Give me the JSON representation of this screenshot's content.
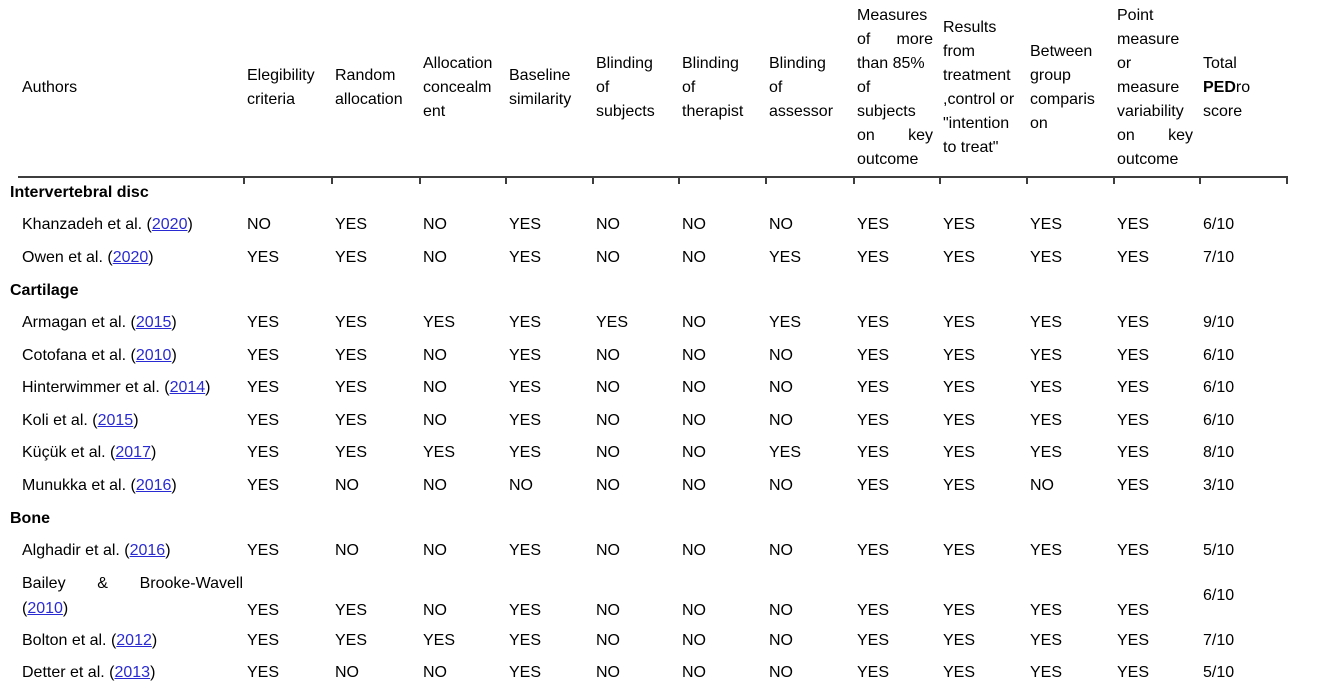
{
  "page": {
    "background": "#ffffff",
    "link_color": "#2a2ad2",
    "rule_color": "#3d3d3d"
  },
  "table": {
    "columns": [
      {
        "id": "authors",
        "lines": [
          {
            "segs": [
              {
                "t": "Authors"
              }
            ]
          }
        ]
      },
      {
        "id": "eligibility-criteria",
        "lines": [
          {
            "segs": [
              {
                "t": "Elegibility"
              }
            ]
          },
          {
            "segs": [
              {
                "t": "criteria"
              }
            ]
          }
        ]
      },
      {
        "id": "random-allocation",
        "lines": [
          {
            "segs": [
              {
                "t": "Random"
              }
            ]
          },
          {
            "segs": [
              {
                "t": "allocation"
              }
            ]
          }
        ]
      },
      {
        "id": "allocation-concealment",
        "lines": [
          {
            "segs": [
              {
                "t": "Allocation"
              }
            ]
          },
          {
            "segs": [
              {
                "t": "concealm"
              }
            ]
          },
          {
            "segs": [
              {
                "t": "ent"
              }
            ]
          }
        ]
      },
      {
        "id": "baseline-similarity",
        "lines": [
          {
            "segs": [
              {
                "t": "Baseline"
              }
            ]
          },
          {
            "segs": [
              {
                "t": "similarity"
              }
            ]
          }
        ]
      },
      {
        "id": "blinding-of-subjects",
        "lines": [
          {
            "segs": [
              {
                "t": "Blinding"
              }
            ]
          },
          {
            "segs": [
              {
                "t": "of"
              }
            ]
          },
          {
            "segs": [
              {
                "t": "subjects"
              }
            ]
          }
        ]
      },
      {
        "id": "blinding-of-therapist",
        "lines": [
          {
            "segs": [
              {
                "t": "Blinding"
              }
            ]
          },
          {
            "segs": [
              {
                "t": "of"
              }
            ]
          },
          {
            "segs": [
              {
                "t": "therapist"
              }
            ]
          }
        ]
      },
      {
        "id": "blinding-of-assessor",
        "lines": [
          {
            "segs": [
              {
                "t": "Blinding"
              }
            ]
          },
          {
            "segs": [
              {
                "t": "of"
              }
            ]
          },
          {
            "segs": [
              {
                "t": "assessor"
              }
            ]
          }
        ]
      },
      {
        "id": "measures-more-than-85",
        "lines": [
          {
            "segs": [
              {
                "t": "Measures"
              }
            ]
          },
          {
            "justify": true,
            "segs": [
              {
                "t": "of"
              },
              {
                "t": "more"
              }
            ]
          },
          {
            "segs": [
              {
                "t": "than 85%"
              }
            ]
          },
          {
            "segs": [
              {
                "t": "of"
              }
            ]
          },
          {
            "segs": [
              {
                "t": "subjects"
              }
            ]
          },
          {
            "justify": true,
            "segs": [
              {
                "t": "on"
              },
              {
                "t": "key"
              }
            ]
          },
          {
            "segs": [
              {
                "t": "outcome"
              }
            ]
          }
        ]
      },
      {
        "id": "intention-to-treat",
        "lines": [
          {
            "segs": [
              {
                "t": "Results"
              }
            ]
          },
          {
            "segs": [
              {
                "t": "from"
              }
            ]
          },
          {
            "segs": [
              {
                "t": "treatment"
              }
            ]
          },
          {
            "segs": [
              {
                "t": ",control or"
              }
            ]
          },
          {
            "segs": [
              {
                "t": "\"intention"
              }
            ]
          },
          {
            "segs": [
              {
                "t": "to treat\""
              }
            ]
          }
        ]
      },
      {
        "id": "between-group-comparison",
        "lines": [
          {
            "segs": [
              {
                "t": "Between"
              }
            ]
          },
          {
            "segs": [
              {
                "t": "group"
              }
            ]
          },
          {
            "segs": [
              {
                "t": "comparis"
              }
            ]
          },
          {
            "segs": [
              {
                "t": "on"
              }
            ]
          }
        ]
      },
      {
        "id": "point-measure-variability",
        "lines": [
          {
            "segs": [
              {
                "t": "Point"
              }
            ]
          },
          {
            "segs": [
              {
                "t": "measure"
              }
            ]
          },
          {
            "segs": [
              {
                "t": "or"
              }
            ]
          },
          {
            "segs": [
              {
                "t": "measure"
              }
            ]
          },
          {
            "segs": [
              {
                "t": "variability"
              }
            ]
          },
          {
            "justify": true,
            "segs": [
              {
                "t": "on"
              },
              {
                "t": "key"
              }
            ]
          },
          {
            "segs": [
              {
                "t": "outcome"
              }
            ]
          }
        ]
      },
      {
        "id": "total-pedro-score",
        "lines": [
          {
            "segs": [
              {
                "t": "Total"
              }
            ]
          },
          {
            "segs": [
              {
                "t": "PED",
                "b": true
              },
              {
                "t": "ro"
              }
            ]
          },
          {
            "segs": [
              {
                "t": "score"
              }
            ]
          }
        ]
      }
    ],
    "sections": [
      {
        "label": "Intervertebral disc",
        "studies": [
          {
            "author": "Khanzadeh et al.",
            "year": "2020",
            "values": [
              "NO",
              "YES",
              "NO",
              "YES",
              "NO",
              "NO",
              "NO",
              "YES",
              "YES",
              "YES",
              "YES"
            ],
            "score": "6/10"
          },
          {
            "author": "Owen et al.",
            "year": "2020",
            "values": [
              "YES",
              "YES",
              "NO",
              "YES",
              "NO",
              "NO",
              "YES",
              "YES",
              "YES",
              "YES",
              "YES"
            ],
            "score": "7/10"
          }
        ]
      },
      {
        "label": "Cartilage",
        "studies": [
          {
            "author": "Armagan et al.",
            "year": "2015",
            "values": [
              "YES",
              "YES",
              "YES",
              "YES",
              "YES",
              "NO",
              "YES",
              "YES",
              "YES",
              "YES",
              "YES"
            ],
            "score": "9/10"
          },
          {
            "author": "Cotofana et al.",
            "year": "2010",
            "values": [
              "YES",
              "YES",
              "NO",
              "YES",
              "NO",
              "NO",
              "NO",
              "YES",
              "YES",
              "YES",
              "YES"
            ],
            "score": "6/10"
          },
          {
            "author": "Hinterwimmer et al.",
            "year": "2014",
            "values": [
              "YES",
              "YES",
              "NO",
              "YES",
              "NO",
              "NO",
              "NO",
              "YES",
              "YES",
              "YES",
              "YES"
            ],
            "score": "6/10"
          },
          {
            "author": "Koli et al.",
            "year": "2015",
            "values": [
              "YES",
              "YES",
              "NO",
              "YES",
              "NO",
              "NO",
              "NO",
              "YES",
              "YES",
              "YES",
              "YES"
            ],
            "score": "6/10"
          },
          {
            "author": "Küçük et al.",
            "year": "2017",
            "values": [
              "YES",
              "YES",
              "YES",
              "YES",
              "NO",
              "NO",
              "YES",
              "YES",
              "YES",
              "YES",
              "YES"
            ],
            "score": "8/10"
          },
          {
            "author": "Munukka et al.",
            "year": "2016",
            "values": [
              "YES",
              "NO",
              "NO",
              "NO",
              "NO",
              "NO",
              "NO",
              "YES",
              "YES",
              "NO",
              "YES"
            ],
            "score": "3/10"
          }
        ]
      },
      {
        "label": "Bone",
        "studies": [
          {
            "author": "Alghadir et al.",
            "year": "2016",
            "values": [
              "YES",
              "NO",
              "NO",
              "YES",
              "NO",
              "NO",
              "NO",
              "YES",
              "YES",
              "YES",
              "YES"
            ],
            "score": "5/10"
          },
          {
            "author": "Bailey & Brooke-Wavell",
            "year": "2010",
            "wrap": true,
            "values": [
              "YES",
              "YES",
              "NO",
              "YES",
              "NO",
              "NO",
              "NO",
              "YES",
              "YES",
              "YES",
              "YES"
            ],
            "score": "6/10"
          },
          {
            "author": "Bolton et al.",
            "year": "2012",
            "values": [
              "YES",
              "YES",
              "YES",
              "YES",
              "NO",
              "NO",
              "NO",
              "YES",
              "YES",
              "YES",
              "YES"
            ],
            "score": "7/10"
          },
          {
            "author": "Detter et al.",
            "year": "2013",
            "values": [
              "YES",
              "NO",
              "NO",
              "YES",
              "NO",
              "NO",
              "NO",
              "YES",
              "YES",
              "YES",
              "YES"
            ],
            "score": "5/10"
          }
        ]
      }
    ],
    "column_boundaries": [
      243,
      331,
      419,
      505,
      592,
      678,
      765,
      853,
      939,
      1026,
      1113,
      1199,
      1286
    ]
  }
}
